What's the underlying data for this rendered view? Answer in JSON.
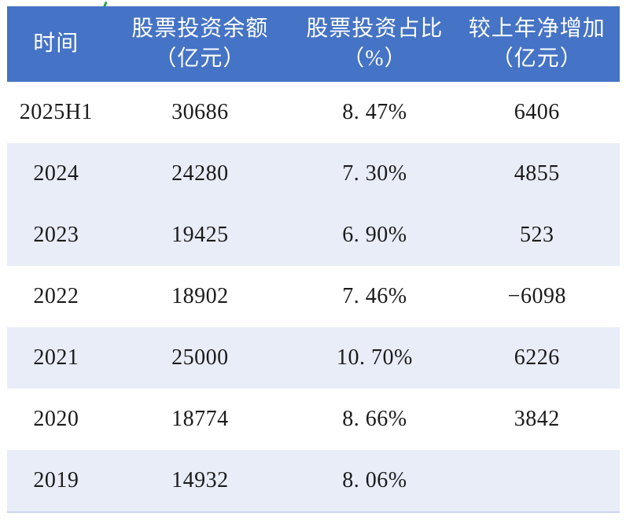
{
  "colors": {
    "header_background": "#4573C5",
    "header_text": "#FFFFFF",
    "row_alternate_background": "#E9EDF8",
    "row_background": "#FFFFFF",
    "cell_text": "#1B1B1B",
    "bottom_border_line": "#C9D4EC",
    "tick_mark_green": "#21A24B"
  },
  "decorations": {
    "green_tick_mark": "small green slanted stroke above header"
  },
  "table": {
    "columns": [
      {
        "line1": "时间",
        "line2": ""
      },
      {
        "line1": "股票投资余额",
        "line2": "（亿元）"
      },
      {
        "line1": "股票投资占比",
        "line2": "（%）"
      },
      {
        "line1": "较上年净增加",
        "line2": "（亿元）"
      }
    ],
    "rows": [
      {
        "period": "2025H1",
        "balance": "30686",
        "share": "8. 47%",
        "net_change": "6406"
      },
      {
        "period": "2024",
        "balance": "24280",
        "share": "7. 30%",
        "net_change": "4855"
      },
      {
        "period": "2023",
        "balance": "19425",
        "share": "6. 90%",
        "net_change": "523"
      },
      {
        "period": "2022",
        "balance": "18902",
        "share": "7. 46%",
        "net_change": "−6098"
      },
      {
        "period": "2021",
        "balance": "25000",
        "share": "10. 70%",
        "net_change": "6226"
      },
      {
        "period": "2020",
        "balance": "18774",
        "share": "8. 66%",
        "net_change": "3842"
      },
      {
        "period": "2019",
        "balance": "14932",
        "share": "8. 06%",
        "net_change": ""
      }
    ]
  },
  "chart_data": {
    "type": "table",
    "title": "",
    "columns": [
      "时间",
      "股票投资余额（亿元）",
      "股票投资占比（%）",
      "较上年净增加（亿元）"
    ],
    "categories": [
      "2025H1",
      "2024",
      "2023",
      "2022",
      "2021",
      "2020",
      "2019"
    ],
    "series": [
      {
        "name": "股票投资余额（亿元）",
        "values": [
          30686,
          24280,
          19425,
          18902,
          25000,
          18774,
          14932
        ]
      },
      {
        "name": "股票投资占比（%）",
        "values": [
          8.47,
          7.3,
          6.9,
          7.46,
          10.7,
          8.66,
          8.06
        ]
      },
      {
        "name": "较上年净增加（亿元）",
        "values": [
          6406,
          4855,
          523,
          -6098,
          6226,
          3842,
          null
        ]
      }
    ]
  }
}
